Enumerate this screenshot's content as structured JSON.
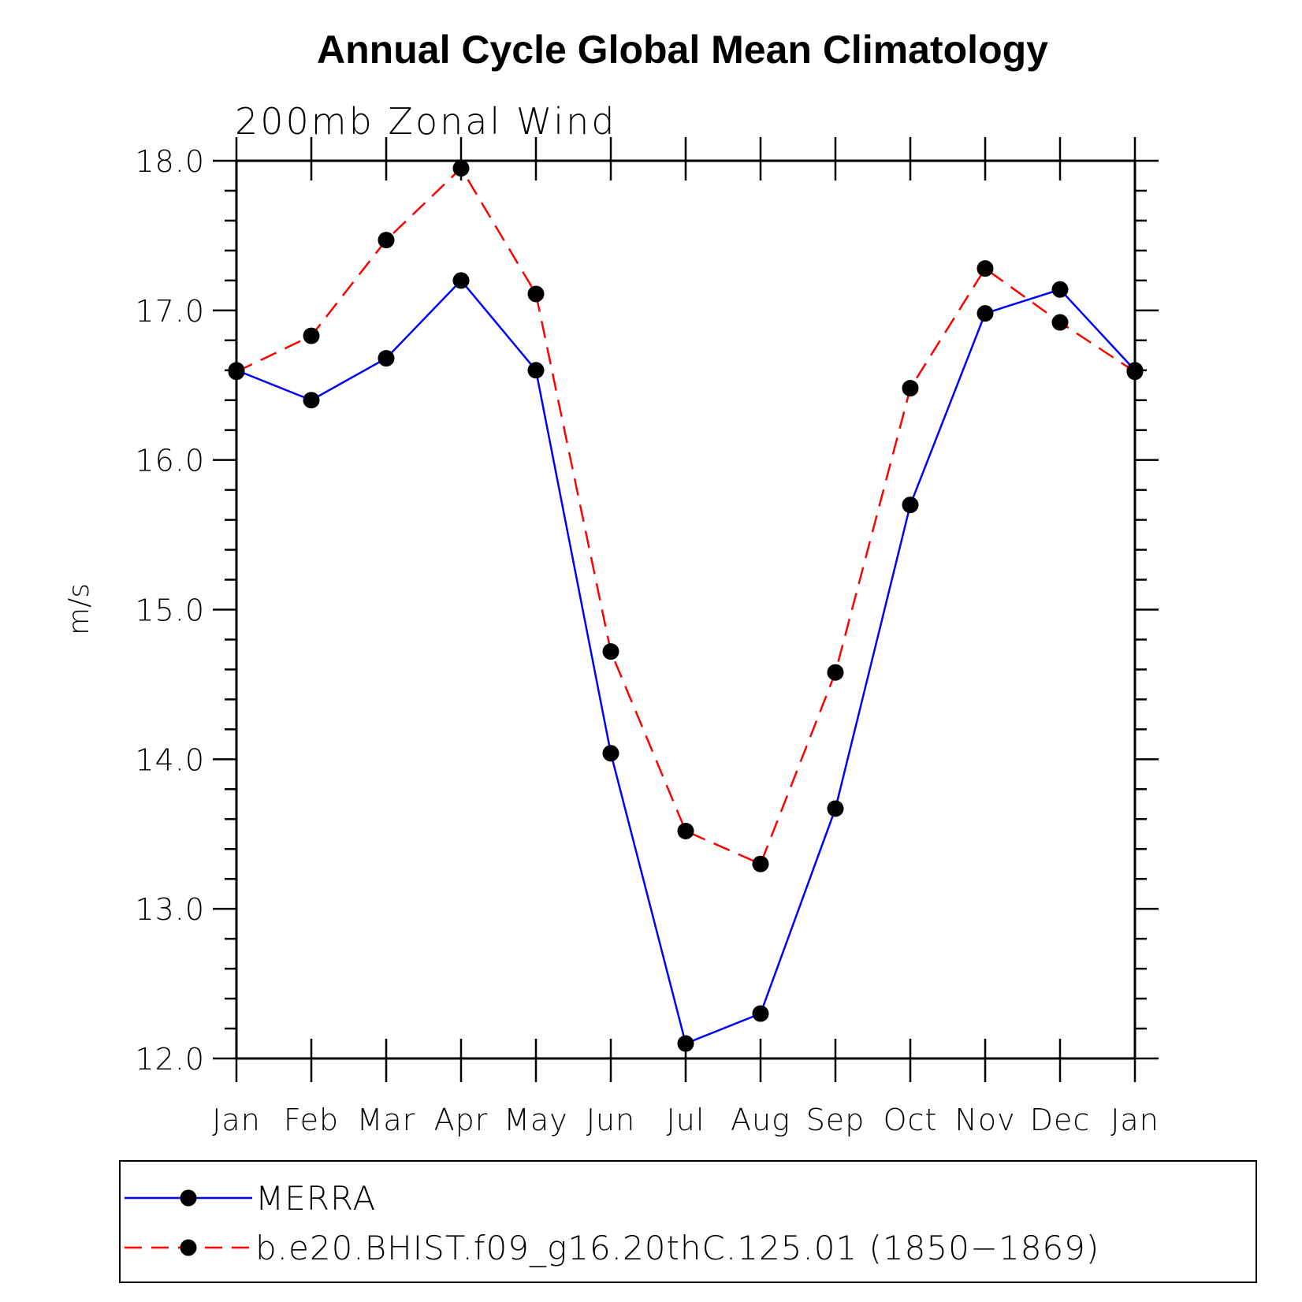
{
  "chart_data": {
    "type": "line",
    "title": "Annual Cycle Global Mean Climatology",
    "subtitle": "200mb Zonal Wind",
    "ylabel": "m/s",
    "xlabel": "",
    "categories": [
      "Jan",
      "Feb",
      "Mar",
      "Apr",
      "May",
      "Jun",
      "Jul",
      "Aug",
      "Sep",
      "Oct",
      "Nov",
      "Dec",
      "Jan"
    ],
    "ylim": [
      12.0,
      18.0
    ],
    "yticks": [
      "12.0",
      "13.0",
      "14.0",
      "15.0",
      "16.0",
      "17.0",
      "18.0"
    ],
    "grid": false,
    "legend_position": "bottom",
    "series": [
      {
        "name": "MERRA",
        "color": "#0000ff",
        "line_style": "solid",
        "values": [
          16.6,
          16.4,
          16.68,
          17.2,
          16.6,
          14.04,
          12.1,
          12.3,
          13.67,
          15.7,
          16.98,
          17.14,
          16.6
        ]
      },
      {
        "name": "b.e20.BHIST.f09_g16.20thC.125.01 (1850−1869)",
        "color": "#ff0000",
        "line_style": "dashed",
        "values": [
          16.59,
          16.83,
          17.47,
          17.95,
          17.11,
          14.72,
          13.52,
          13.3,
          14.58,
          16.48,
          17.28,
          16.92,
          16.59
        ]
      }
    ]
  }
}
